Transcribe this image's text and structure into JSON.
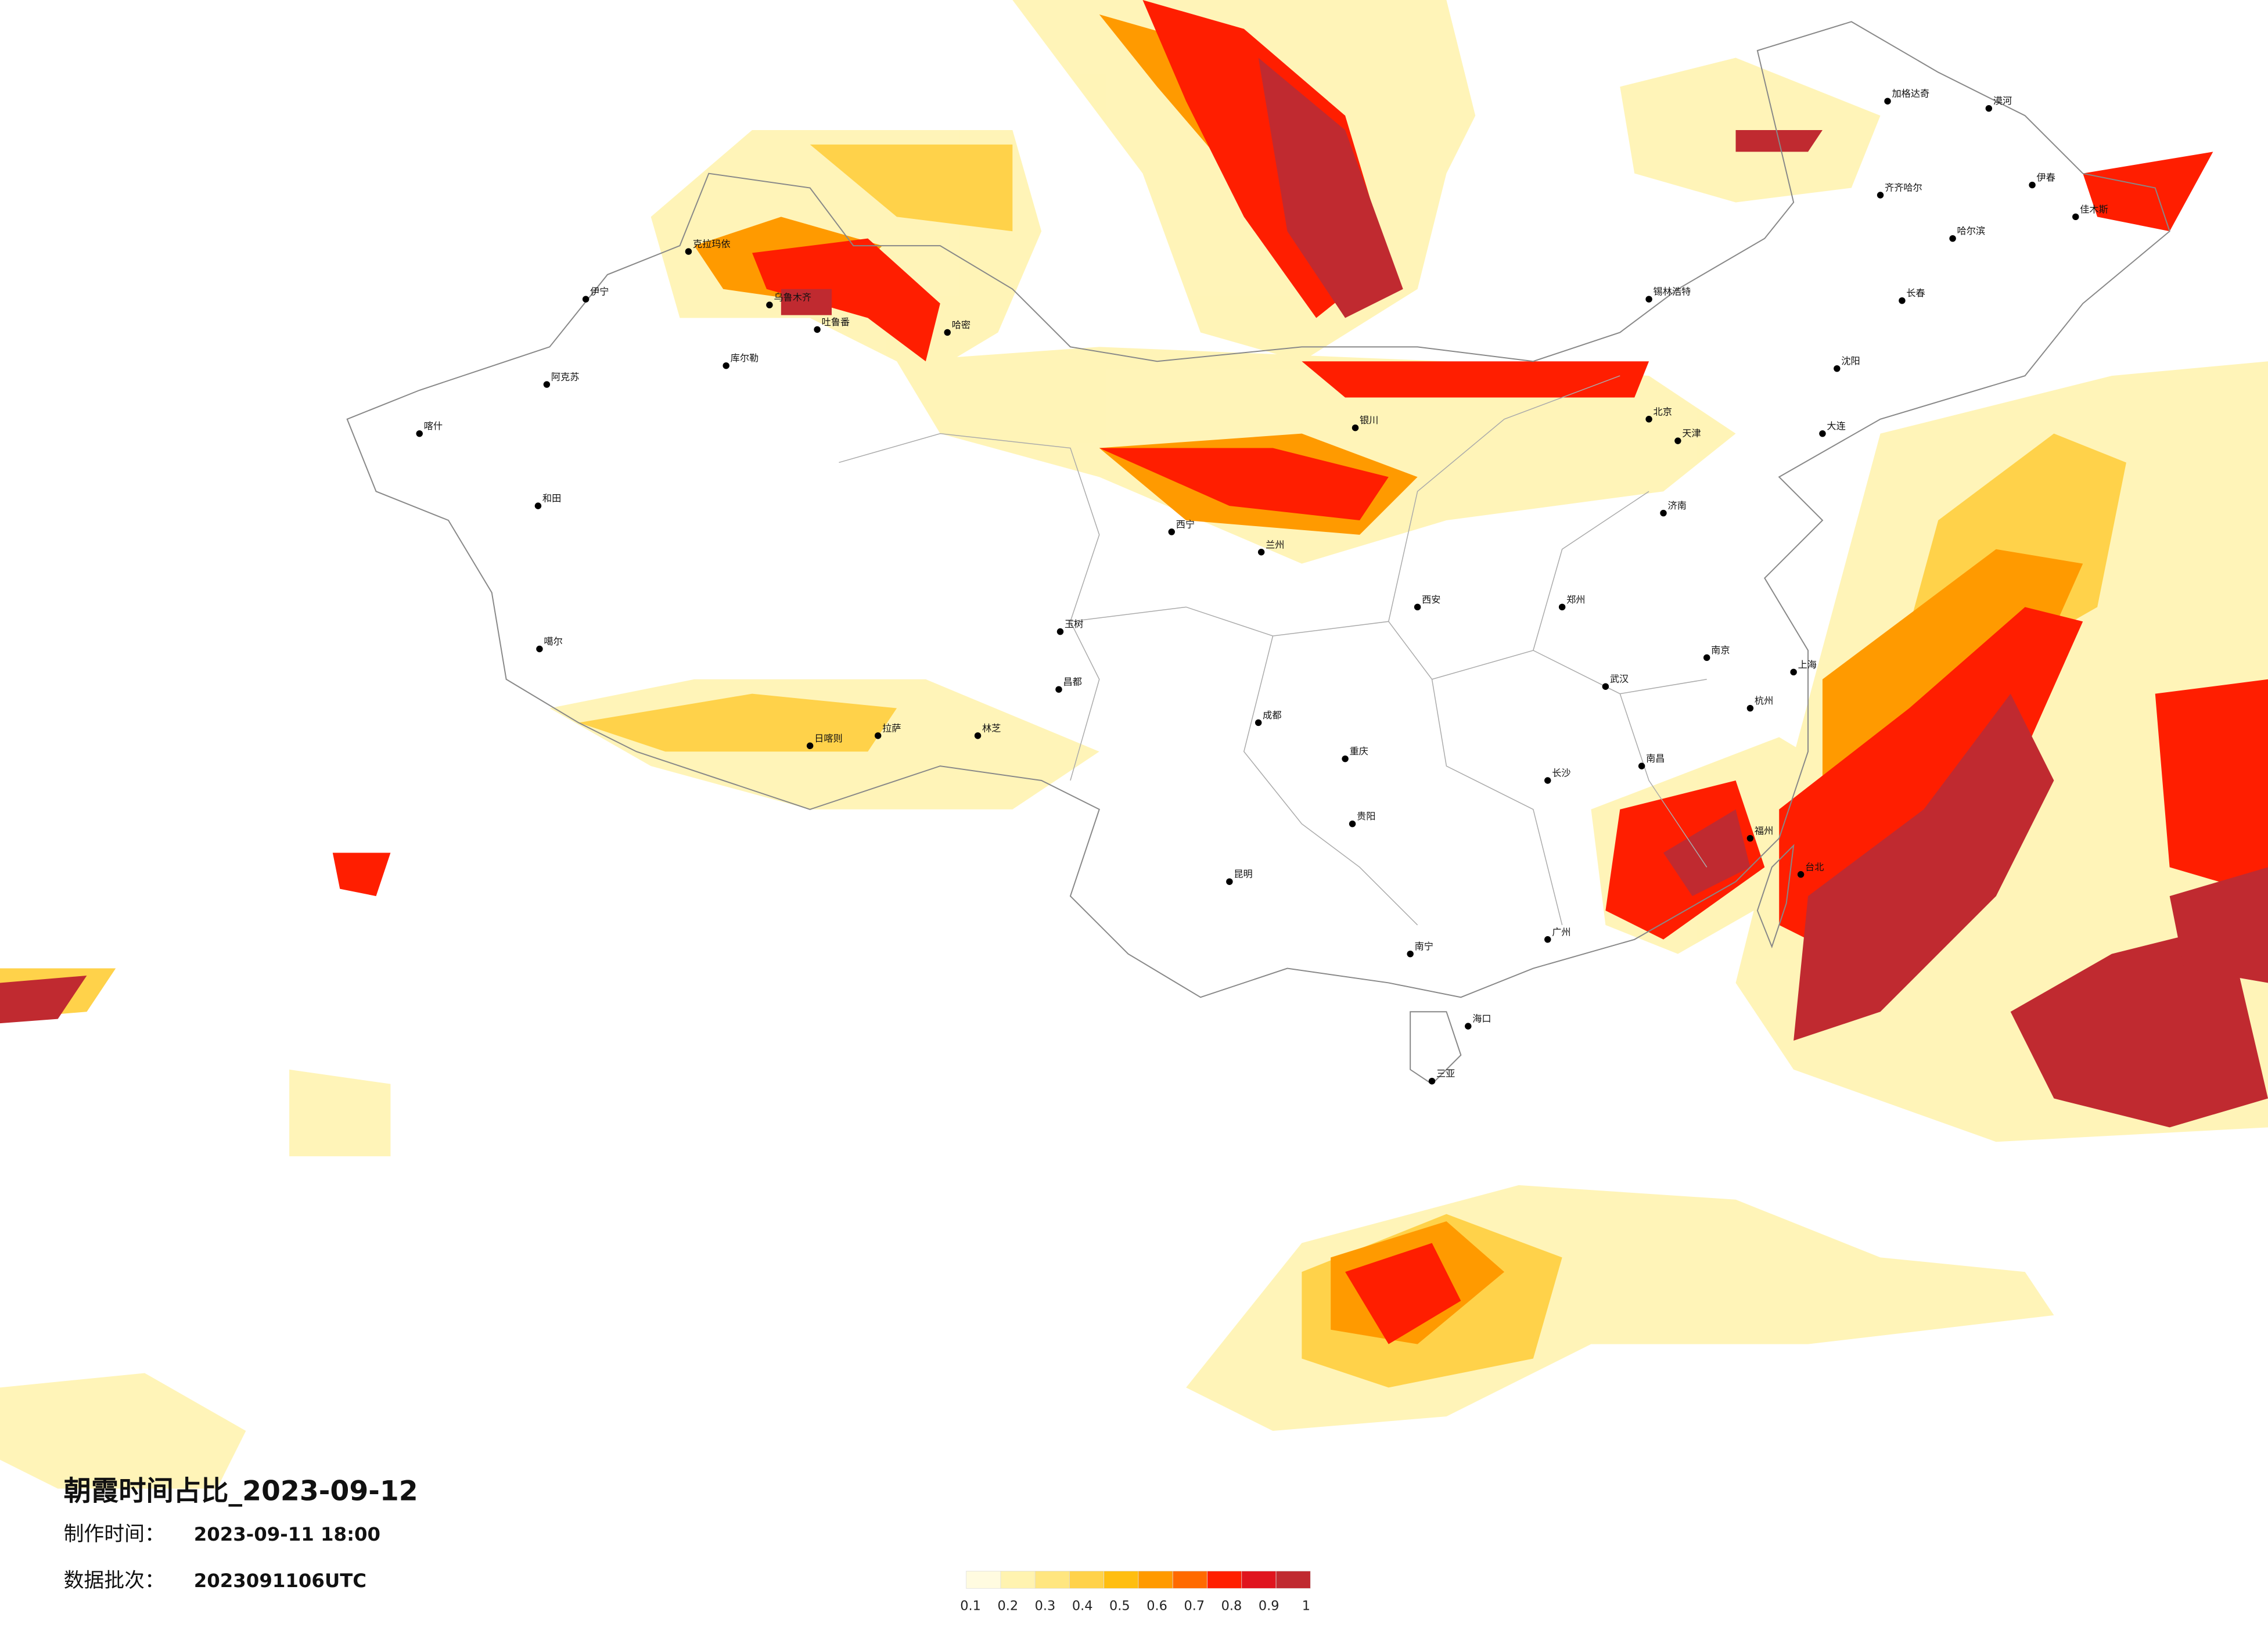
{
  "title": "朝霞时间占比_2023-09-12",
  "made_label": "制作时间：",
  "made_time": "2023-09-11 18:00",
  "batch_label": "数据批次：",
  "batch": "2023091106UTC",
  "legend": {
    "colors": [
      "#fffbe0",
      "#fff3b0",
      "#ffe680",
      "#ffd24a",
      "#ffbe10",
      "#ff9a00",
      "#ff6a00",
      "#ff1e00",
      "#e0141e",
      "#c02a30"
    ],
    "ticks": [
      0.1,
      0.2,
      0.3,
      0.4,
      0.5,
      0.6,
      0.7,
      0.8,
      0.9,
      1
    ]
  },
  "cities": [
    "乌鲁木齐",
    "伊宁",
    "克拉玛依",
    "吐鲁番",
    "哈密",
    "库尔勒",
    "阿克苏",
    "喀什",
    "和田",
    "噶尔",
    "日喀则",
    "拉萨",
    "林芝",
    "昌都",
    "玉树",
    "西宁",
    "兰州",
    "银川",
    "锡林浩特",
    "北京",
    "天津",
    "济南",
    "郑州",
    "西安",
    "成都",
    "重庆",
    "武汉",
    "长沙",
    "南昌",
    "南京",
    "上海",
    "杭州",
    "福州",
    "台北",
    "广州",
    "南宁",
    "海口",
    "三亚",
    "贵阳",
    "昆明",
    "沈阳",
    "大连",
    "长春",
    "哈尔滨",
    "齐齐哈尔",
    "漠河",
    "加格达奇",
    "伊春",
    "佳木斯"
  ]
}
